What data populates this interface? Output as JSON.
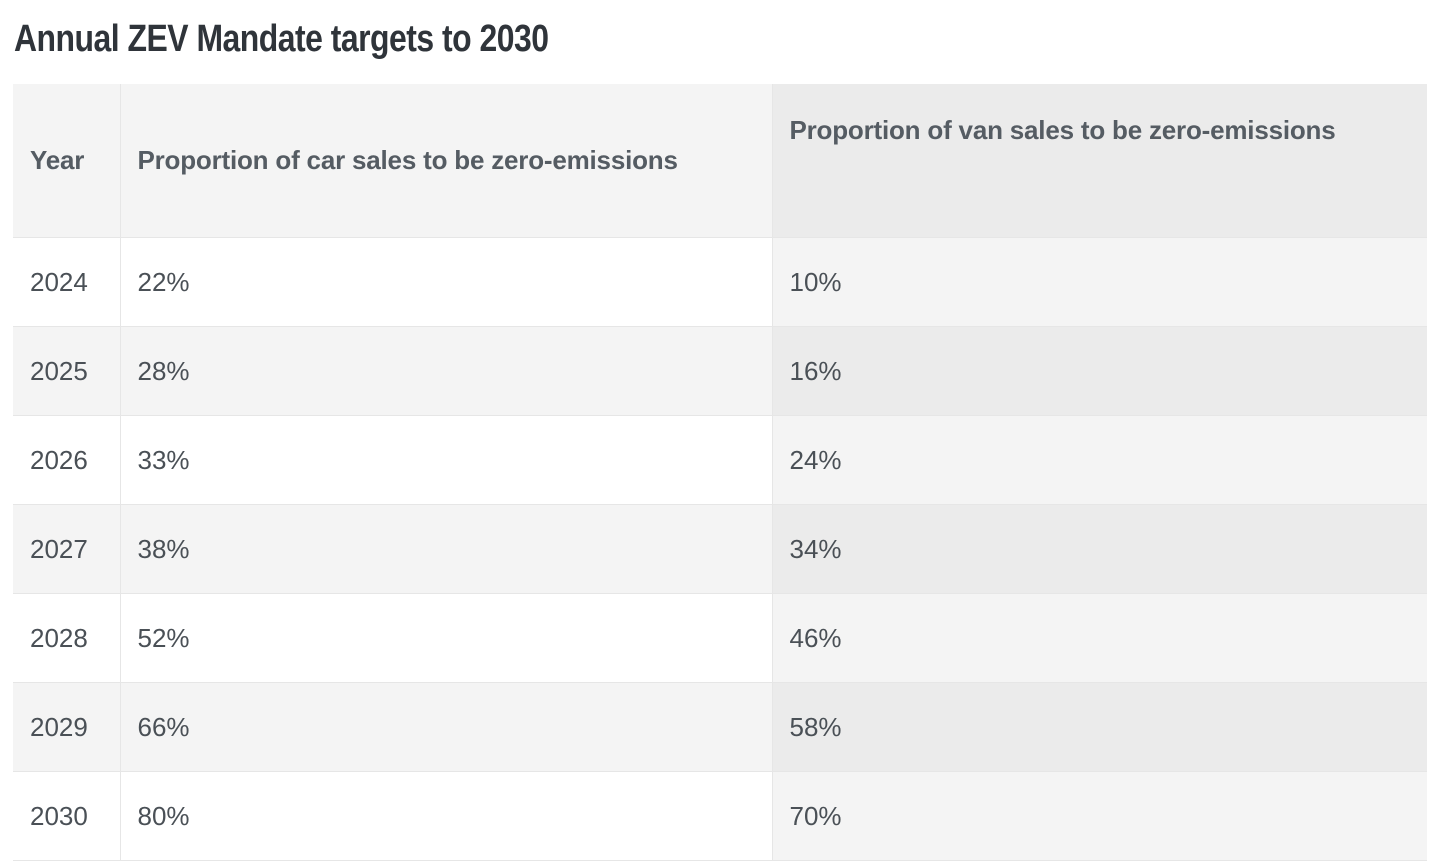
{
  "title": "Annual ZEV Mandate targets to 2030",
  "table": {
    "headers": {
      "year": "Year",
      "car": "Proportion of car sales to be zero-emissions",
      "van": "Proportion of van sales to be zero-emissions"
    },
    "rows": [
      {
        "year": "2024",
        "car": "22%",
        "van": "10%"
      },
      {
        "year": "2025",
        "car": "28%",
        "van": "16%"
      },
      {
        "year": "2026",
        "car": "33%",
        "van": "24%"
      },
      {
        "year": "2027",
        "car": "38%",
        "van": "34%"
      },
      {
        "year": "2028",
        "car": "52%",
        "van": "46%"
      },
      {
        "year": "2029",
        "car": "66%",
        "van": "58%"
      },
      {
        "year": "2030",
        "car": "80%",
        "van": "70%"
      }
    ]
  }
}
